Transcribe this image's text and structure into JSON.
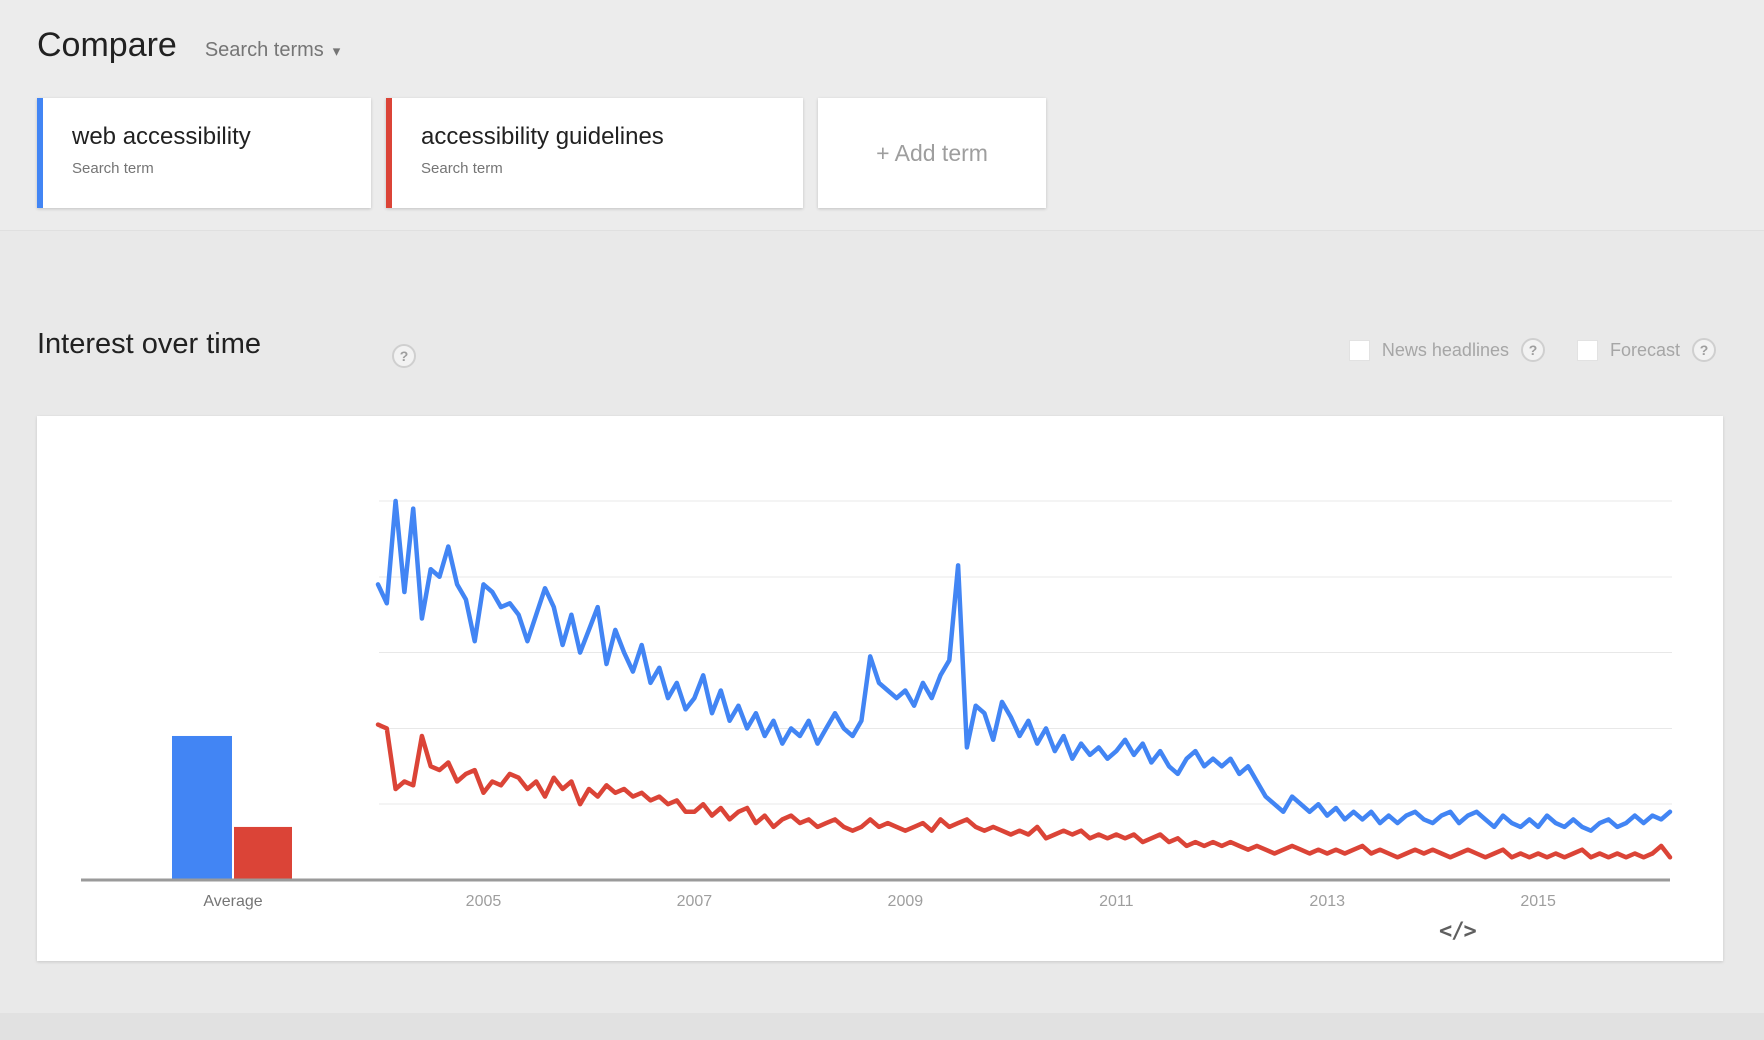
{
  "header": {
    "title": "Compare",
    "subtitle": "Search terms"
  },
  "icons": {
    "caret": "▾",
    "help": "?",
    "embed": "</>"
  },
  "terms": [
    {
      "label": "web accessibility",
      "sublabel": "Search term",
      "color": "#4285f4"
    },
    {
      "label": "accessibility guidelines",
      "sublabel": "Search term",
      "color": "#db4437"
    }
  ],
  "add_term_label": "+ Add term",
  "section": {
    "title": "Interest over time",
    "news_headlines_label": "News headlines",
    "forecast_label": "Forecast"
  },
  "chart_data": {
    "type": "line",
    "title": "Interest over time",
    "x_start": "2004-01",
    "x_end": "2016-04",
    "x_tick_labels": [
      "2005",
      "2007",
      "2009",
      "2011",
      "2013",
      "2015"
    ],
    "ylim": [
      0,
      100
    ],
    "gridlines": [
      0,
      20,
      40,
      60,
      80,
      100
    ],
    "grid": true,
    "legend_position": "none",
    "average_bars": {
      "label": "Average",
      "values": [
        {
          "name": "web accessibility",
          "value": 38,
          "color": "#4285f4"
        },
        {
          "name": "accessibility guidelines",
          "value": 14,
          "color": "#db4437"
        }
      ]
    },
    "series": [
      {
        "name": "web accessibility",
        "color": "#4285f4",
        "values": [
          78,
          73,
          100,
          76,
          98,
          69,
          82,
          80,
          88,
          78,
          74,
          63,
          78,
          76,
          72,
          73,
          70,
          63,
          70,
          77,
          72,
          62,
          70,
          60,
          66,
          72,
          57,
          66,
          60,
          55,
          62,
          52,
          56,
          48,
          52,
          45,
          48,
          54,
          44,
          50,
          42,
          46,
          40,
          44,
          38,
          42,
          36,
          40,
          38,
          42,
          36,
          40,
          44,
          40,
          38,
          42,
          59,
          52,
          50,
          48,
          50,
          46,
          52,
          48,
          54,
          58,
          83,
          35,
          46,
          44,
          37,
          47,
          43,
          38,
          42,
          36,
          40,
          34,
          38,
          32,
          36,
          33,
          35,
          32,
          34,
          37,
          33,
          36,
          31,
          34,
          30,
          28,
          32,
          34,
          30,
          32,
          30,
          32,
          28,
          30,
          26,
          22,
          20,
          18,
          22,
          20,
          18,
          20,
          17,
          19,
          16,
          18,
          16,
          18,
          15,
          17,
          15,
          17,
          18,
          16,
          15,
          17,
          18,
          15,
          17,
          18,
          16,
          14,
          17,
          15,
          14,
          16,
          14,
          17,
          15,
          14,
          16,
          14,
          13,
          15,
          16,
          14,
          15,
          17,
          15,
          17,
          16,
          18
        ]
      },
      {
        "name": "accessibility guidelines",
        "color": "#db4437",
        "values": [
          41,
          40,
          24,
          26,
          25,
          38,
          30,
          29,
          31,
          26,
          28,
          29,
          23,
          26,
          25,
          28,
          27,
          24,
          26,
          22,
          27,
          24,
          26,
          20,
          24,
          22,
          25,
          23,
          24,
          22,
          23,
          21,
          22,
          20,
          21,
          18,
          18,
          20,
          17,
          19,
          16,
          18,
          19,
          15,
          17,
          14,
          16,
          17,
          15,
          16,
          14,
          15,
          16,
          14,
          13,
          14,
          16,
          14,
          15,
          14,
          13,
          14,
          15,
          13,
          16,
          14,
          15,
          16,
          14,
          13,
          14,
          13,
          12,
          13,
          12,
          14,
          11,
          12,
          13,
          12,
          13,
          11,
          12,
          11,
          12,
          11,
          12,
          10,
          11,
          12,
          10,
          11,
          9,
          10,
          9,
          10,
          9,
          10,
          9,
          8,
          9,
          8,
          7,
          8,
          9,
          8,
          7,
          8,
          7,
          8,
          7,
          8,
          9,
          7,
          8,
          7,
          6,
          7,
          8,
          7,
          8,
          7,
          6,
          7,
          8,
          7,
          6,
          7,
          8,
          6,
          7,
          6,
          7,
          6,
          7,
          6,
          7,
          8,
          6,
          7,
          6,
          7,
          6,
          7,
          6,
          7,
          9,
          6
        ]
      }
    ]
  }
}
